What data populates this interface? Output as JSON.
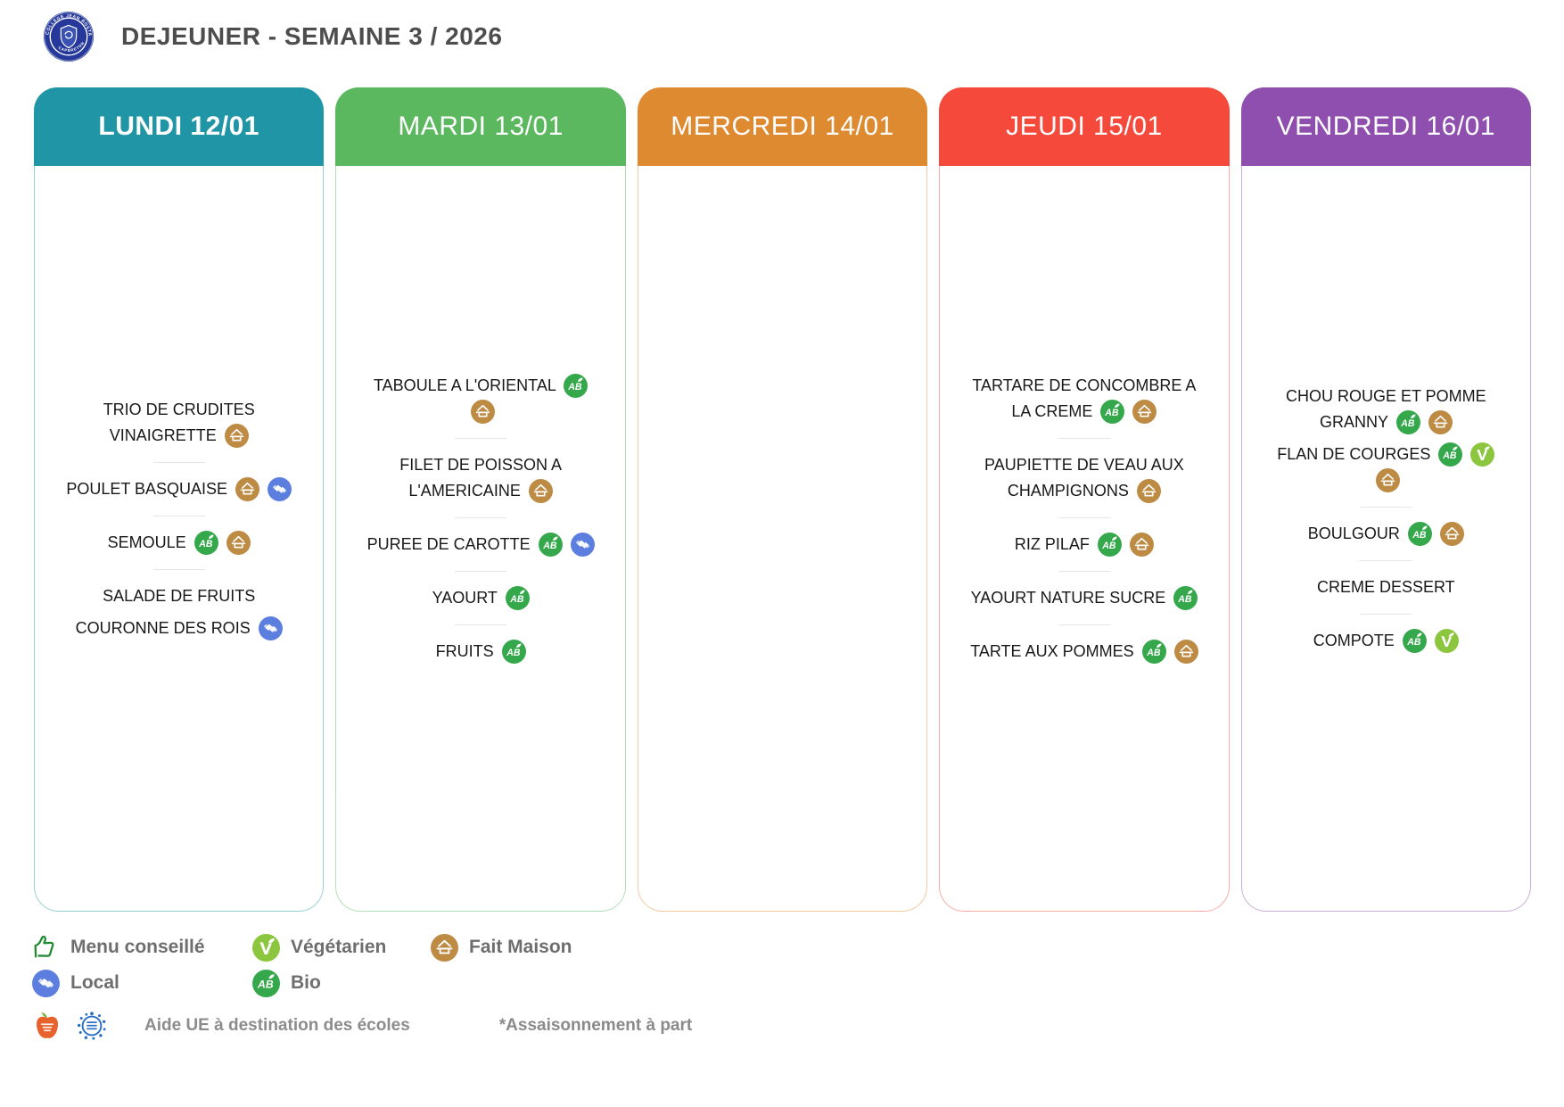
{
  "header": {
    "title": "DEJEUNER - SEMAINE 3 / 2026",
    "logo": {
      "text_top": "COLLEGE JEAN ROSTAND",
      "text_bottom": "CAPBRETON"
    }
  },
  "colors": {
    "bio": "#35A84C",
    "fait_maison": "#BD8B44",
    "local": "#5C7FDF",
    "vegetarien": "#8CC63F",
    "menu_conseille": "#1F8A2F",
    "logo_blue": "#26399A",
    "fruit_logo_orange": "#E8622D",
    "eu_logo_blue": "#2B6FC4",
    "title_text": "#4D4D4D",
    "legend_text": "#6E6E6E",
    "footer_text": "#8C8C8C",
    "item_text": "#181818"
  },
  "days": [
    {
      "label": "LUNDI 12/01",
      "color": "#2095A6",
      "highlight": true,
      "items": [
        {
          "text": "TRIO DE CRUDITES VINAIGRETTE",
          "icons": [
            "fait-maison"
          ],
          "divider_after": true
        },
        {
          "text": "POULET BASQUAISE",
          "icons": [
            "fait-maison",
            "local"
          ],
          "divider_after": true
        },
        {
          "text": "SEMOULE",
          "icons": [
            "bio",
            "fait-maison"
          ],
          "divider_after": true
        },
        {
          "text": "SALADE DE FRUITS",
          "icons": [],
          "divider_after": false
        },
        {
          "text": "COURONNE DES ROIS",
          "icons": [
            "local"
          ],
          "divider_after": false
        }
      ]
    },
    {
      "label": "MARDI 13/01",
      "color": "#5BB85F",
      "highlight": false,
      "items": [
        {
          "text": "TABOULE A L'ORIENTAL",
          "icons": [
            "bio",
            "fait-maison"
          ],
          "divider_after": true
        },
        {
          "text": "FILET DE POISSON A L'AMERICAINE",
          "icons": [
            "fait-maison"
          ],
          "divider_after": true
        },
        {
          "text": "PUREE DE CAROTTE",
          "icons": [
            "bio",
            "local"
          ],
          "divider_after": true
        },
        {
          "text": "YAOURT",
          "icons": [
            "bio"
          ],
          "divider_after": true
        },
        {
          "text": "FRUITS",
          "icons": [
            "bio"
          ],
          "divider_after": false
        }
      ]
    },
    {
      "label": "MERCREDI 14/01",
      "color": "#DE8A30",
      "highlight": false,
      "items": []
    },
    {
      "label": "JEUDI 15/01",
      "color": "#F4493B",
      "highlight": false,
      "items": [
        {
          "text": "TARTARE DE CONCOMBRE A LA CREME",
          "icons": [
            "bio",
            "fait-maison"
          ],
          "divider_after": true
        },
        {
          "text": "PAUPIETTE DE VEAU AUX CHAMPIGNONS",
          "icons": [
            "fait-maison"
          ],
          "divider_after": true
        },
        {
          "text": "RIZ PILAF",
          "icons": [
            "bio",
            "fait-maison"
          ],
          "divider_after": true
        },
        {
          "text": "YAOURT NATURE SUCRE",
          "icons": [
            "bio"
          ],
          "divider_after": true
        },
        {
          "text": "TARTE AUX POMMES",
          "icons": [
            "bio",
            "fait-maison"
          ],
          "divider_after": false
        }
      ]
    },
    {
      "label": "VENDREDI 16/01",
      "color": "#8E4FAE",
      "highlight": false,
      "items": [
        {
          "text": "CHOU ROUGE ET POMME GRANNY",
          "icons": [
            "bio",
            "fait-maison"
          ],
          "divider_after": false
        },
        {
          "text": "FLAN DE COURGES",
          "icons": [
            "bio",
            "vegetarien",
            "fait-maison"
          ],
          "divider_after": true
        },
        {
          "text": "BOULGOUR",
          "icons": [
            "bio",
            "fait-maison"
          ],
          "divider_after": true
        },
        {
          "text": "CREME DESSERT",
          "icons": [],
          "divider_after": true
        },
        {
          "text": "COMPOTE",
          "icons": [
            "bio",
            "vegetarien"
          ],
          "divider_after": false
        }
      ]
    }
  ],
  "legend": {
    "items": [
      {
        "icon": "menu-conseille",
        "label": "Menu conseillé"
      },
      {
        "icon": "vegetarien",
        "label": "Végétarien"
      },
      {
        "icon": "fait-maison",
        "label": "Fait Maison"
      },
      {
        "icon": "local",
        "label": "Local"
      },
      {
        "icon": "bio",
        "label": "Bio"
      }
    ],
    "footer": {
      "aid_text": "Aide UE à destination des écoles",
      "seasoning_text": "*Assaisonnement à part"
    }
  }
}
